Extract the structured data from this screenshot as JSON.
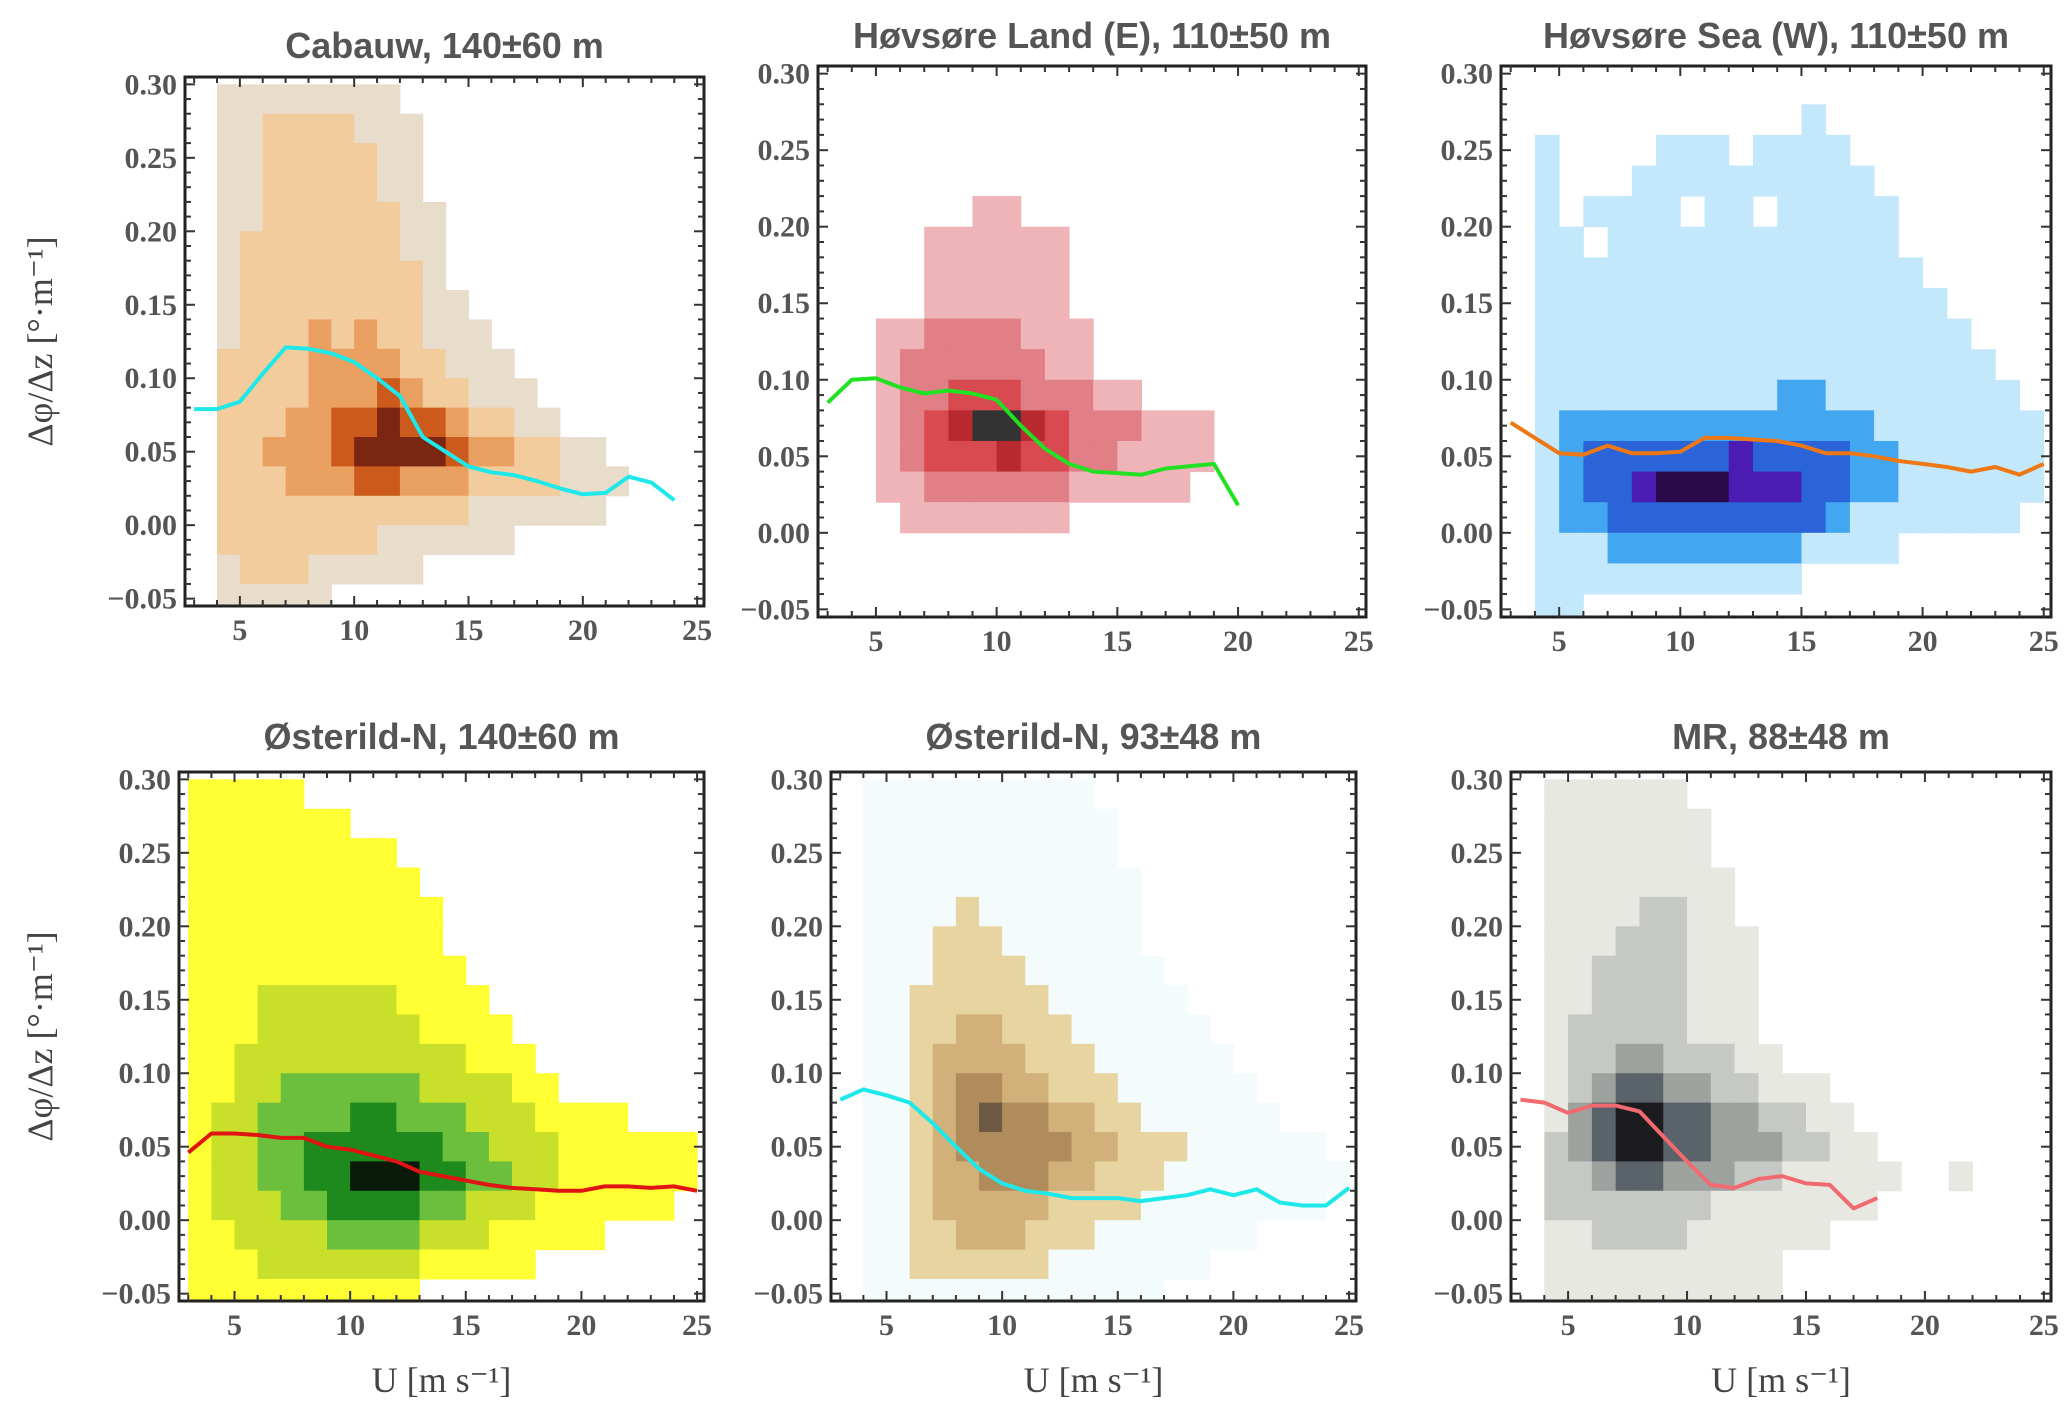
{
  "chart_data": [
    {
      "type": "heatmap",
      "title": "Cabauw, 140±60 m",
      "xlabel": "",
      "ylabel": "Δφ/Δz [°·m⁻¹]",
      "xlim": [
        2.6,
        25.3
      ],
      "ylim": [
        -0.055,
        0.305
      ],
      "xticks": [
        "5",
        "10",
        "15",
        "20",
        "25"
      ],
      "yticks": [
        "0.30",
        "0.25",
        "0.20",
        "0.15",
        "0.10",
        "0.05",
        "0.00",
        "−0.05"
      ],
      "heatmap": {
        "x_bin_start": 3,
        "x_bin_width": 1,
        "y_bin_top": 0.3,
        "y_bin_height": 0.02,
        "levels_rows_top_to_bottom": [
          "0111111110000000000000",
          "0112222111000000000000",
          "0112222211000000000000",
          "0112222211000000000000",
          "0112222221100000000000",
          "0122222221100000000000",
          "0122222222100000000000",
          "0122222222110000000000",
          "0122232322111000000000",
          "0222233332211100000000",
          "0222233343221110000000",
          "0222334454432211000000",
          "0223334555543322110000",
          "0222333443332222111000",
          "0222222222221111110000",
          "0222222211111100000000",
          "0122211111000000000000",
          "0111110000000000000000"
        ],
        "palette": [
          "#e8dccb",
          "#f2cc9c",
          "#eaa060",
          "#cc5a1c",
          "#7a2610"
        ]
      },
      "line": {
        "color": "#1ee8ea",
        "x": [
          3,
          4,
          5,
          6,
          7,
          8,
          9,
          10,
          11,
          12,
          13,
          14,
          15,
          16,
          17,
          18,
          19,
          20,
          21,
          22,
          23,
          24
        ],
        "y": [
          0.079,
          0.079,
          0.084,
          0.103,
          0.121,
          0.12,
          0.117,
          0.111,
          0.1,
          0.088,
          0.06,
          0.05,
          0.04,
          0.036,
          0.034,
          0.03,
          0.025,
          0.021,
          0.022,
          0.033,
          0.029,
          0.017
        ]
      }
    },
    {
      "type": "heatmap",
      "title": "Høvsøre Land (E), 110±50 m",
      "xlabel": "",
      "ylabel": "",
      "xlim": [
        2.6,
        25.3
      ],
      "ylim": [
        -0.055,
        0.305
      ],
      "xticks": [
        "5",
        "10",
        "15",
        "20",
        "25"
      ],
      "yticks": [
        "0.30",
        "0.25",
        "0.20",
        "0.15",
        "0.10",
        "0.05",
        "0.00",
        "−0.05"
      ],
      "heatmap": {
        "x_bin_start": 3,
        "x_bin_width": 1,
        "y_bin_top": 0.3,
        "y_bin_height": 0.02,
        "levels_rows_top_to_bottom": [
          "0000000000000000000000",
          "0000000000000000000000",
          "0000000000000000000000",
          "0000000000000000000000",
          "0000001100000000000000",
          "0000111111000000000000",
          "0000111111000000000000",
          "0000111111000000000000",
          "0011222211100000000000",
          "0012222221100000000000",
          "0012233322211000000000",
          "0012345543222111000000",
          "0012333433221111000000",
          "0011222222111110000000",
          "0001111111000000000000",
          "0000000000000000000000",
          "0000000000000000000000",
          "0000000000000000000000"
        ],
        "palette": [
          "#eeb4b8",
          "#e07f85",
          "#d84a50",
          "#b82a2f",
          "#333333"
        ]
      },
      "line": {
        "color": "#22e022",
        "x": [
          3,
          4,
          5,
          6,
          7,
          8,
          9,
          10,
          11,
          12,
          13,
          14,
          15,
          16,
          17,
          19,
          20
        ],
        "y": [
          0.085,
          0.1,
          0.101,
          0.095,
          0.091,
          0.093,
          0.091,
          0.087,
          0.07,
          0.055,
          0.045,
          0.04,
          0.039,
          0.038,
          0.042,
          0.045,
          0.018
        ]
      }
    },
    {
      "type": "heatmap",
      "title": "Høvsøre Sea (W), 110±50 m",
      "xlabel": "",
      "ylabel": "",
      "xlim": [
        2.6,
        25.3
      ],
      "ylim": [
        -0.055,
        0.305
      ],
      "xticks": [
        "5",
        "10",
        "15",
        "20",
        "25"
      ],
      "yticks": [
        "0.30",
        "0.25",
        "0.20",
        "0.15",
        "0.10",
        "0.05",
        "0.00",
        "−0.05"
      ],
      "heatmap": {
        "x_bin_start": 3,
        "x_bin_width": 1,
        "y_bin_top": 0.3,
        "y_bin_height": 0.02,
        "levels_rows_top_to_bottom": [
          "0000000000000000000000",
          "0000000000001000000000",
          "0100001110111100000000",
          "0100011111111110000000",
          "0101111011011111000000",
          "0110111111111111000000",
          "0111111111111111100000",
          "0111111111111111110000",
          "0111111111111111111000",
          "0111111111111111111100",
          "0111111111122111111110",
          "0122222222222221111111",
          "0123333334333322111111",
          "0123345554443322111111",
          "0122333333333211111110",
          "0111222222221111000000",
          "0111111111110000000000",
          "0110000000000000000000"
        ],
        "palette": [
          "#c4e8fb",
          "#42a6f0",
          "#2a64d8",
          "#4a1cb4",
          "#2a0a4a"
        ]
      },
      "line": {
        "color": "#f07814",
        "x": [
          3,
          4,
          5,
          6,
          7,
          8,
          9,
          10,
          11,
          12,
          13,
          14,
          15,
          16,
          17,
          18,
          19,
          20,
          21,
          22,
          23,
          24,
          25
        ],
        "y": [
          0.072,
          0.062,
          0.052,
          0.051,
          0.057,
          0.052,
          0.052,
          0.053,
          0.062,
          0.062,
          0.061,
          0.06,
          0.057,
          0.052,
          0.052,
          0.05,
          0.047,
          0.045,
          0.043,
          0.04,
          0.043,
          0.038,
          0.045
        ]
      }
    },
    {
      "type": "heatmap",
      "title": "Østerild-N, 140±60 m",
      "xlabel": "U [m s⁻¹]",
      "ylabel": "Δφ/Δz [°·m⁻¹]",
      "xlim": [
        2.6,
        25.3
      ],
      "ylim": [
        -0.055,
        0.305
      ],
      "xticks": [
        "5",
        "10",
        "15",
        "20",
        "25"
      ],
      "yticks": [
        "0.30",
        "0.25",
        "0.20",
        "0.15",
        "0.10",
        "0.05",
        "0.00",
        "−0.05"
      ],
      "heatmap": {
        "x_bin_start": 3,
        "x_bin_width": 1,
        "y_bin_top": 0.3,
        "y_bin_height": 0.02,
        "levels_rows_top_to_bottom": [
          "1111100000000000000000",
          "1111111000000000000000",
          "1111111110000000000000",
          "1111111111000000000000",
          "1111111111100000000000",
          "1111111111100000000000",
          "1111111111110000000000",
          "1112222221111000000000",
          "1112222222111100000000",
          "1122222222221110000000",
          "1122333333222211000000",
          "1223333443332221111000",
          "1223344444433222111111",
          "1223344555443322111111",
          "1222334444332221111110",
          "1122223333222111110000",
          "1112222222111110000000",
          "1111111111000000000000"
        ],
        "palette": [
          "#ffff33",
          "#c8e02a",
          "#6cbf3c",
          "#1e8a1e",
          "#0a1a0a"
        ]
      },
      "line": {
        "color": "#e01414",
        "x": [
          3,
          4,
          5,
          6,
          7,
          8,
          9,
          10,
          11,
          12,
          13,
          14,
          15,
          16,
          17,
          18,
          19,
          20,
          21,
          22,
          23,
          24,
          25
        ],
        "y": [
          0.046,
          0.059,
          0.059,
          0.058,
          0.056,
          0.056,
          0.05,
          0.048,
          0.044,
          0.04,
          0.033,
          0.03,
          0.027,
          0.024,
          0.022,
          0.021,
          0.02,
          0.02,
          0.023,
          0.023,
          0.022,
          0.023,
          0.02
        ]
      }
    },
    {
      "type": "heatmap",
      "title": "Østerild-N, 93±48 m",
      "xlabel": "U [m s⁻¹]",
      "ylabel": "",
      "xlim": [
        2.6,
        25.3
      ],
      "ylim": [
        -0.055,
        0.305
      ],
      "xticks": [
        "5",
        "10",
        "15",
        "20",
        "25"
      ],
      "yticks": [
        "0.30",
        "0.25",
        "0.20",
        "0.15",
        "0.10",
        "0.05",
        "0.00",
        "−0.05"
      ],
      "heatmap": {
        "x_bin_start": 3,
        "x_bin_width": 1,
        "y_bin_top": 0.3,
        "y_bin_height": 0.02,
        "levels_rows_top_to_bottom": [
          "0111111111100000000000",
          "0111111111110000000000",
          "0111111111110000000000",
          "0111111111111000000000",
          "0111121111111000000000",
          "0111222111111000000000",
          "0111222211111100000000",
          "0112222221111110000000",
          "0112233222111111000000",
          "0112333322211111100000",
          "0112344332221111110000",
          "0112345443322111111000",
          "0112344444332221111110",
          "0112334443322211111111",
          "0112333332222111111110",
          "0112233322211111110000",
          "0112222221111111000000",
          "0111111111111100000000"
        ],
        "palette": [
          "#f3fbfc",
          "#e8d4a0",
          "#d2b07a",
          "#b08c5c",
          "#6e5a44"
        ]
      },
      "line": {
        "color": "#1ee8ea",
        "x": [
          3,
          4,
          5,
          6,
          7,
          8,
          9,
          10,
          11,
          12,
          13,
          14,
          15,
          16,
          17,
          18,
          19,
          20,
          21,
          22,
          23,
          24,
          25
        ],
        "y": [
          0.082,
          0.089,
          0.085,
          0.08,
          0.066,
          0.05,
          0.035,
          0.025,
          0.02,
          0.018,
          0.015,
          0.015,
          0.015,
          0.013,
          0.015,
          0.017,
          0.021,
          0.017,
          0.021,
          0.012,
          0.01,
          0.01,
          0.022
        ]
      }
    },
    {
      "type": "heatmap",
      "title": "MR, 88±48 m",
      "xlabel": "U [m s⁻¹]",
      "ylabel": "",
      "xlim": [
        2.6,
        25.3
      ],
      "ylim": [
        -0.055,
        0.305
      ],
      "xticks": [
        "5",
        "10",
        "15",
        "20",
        "25"
      ],
      "yticks": [
        "0.30",
        "0.25",
        "0.20",
        "0.15",
        "0.10",
        "0.05",
        "0.00",
        "−0.05"
      ],
      "heatmap": {
        "x_bin_start": 3,
        "x_bin_width": 1,
        "y_bin_top": 0.3,
        "y_bin_height": 0.02,
        "levels_rows_top_to_bottom": [
          "0111111000000000000000",
          "0111111100000000000000",
          "0111111100000000000000",
          "0111111110000000000000",
          "0111122110000000000000",
          "0111222111000000000000",
          "0112222111000000000000",
          "0112222111000000000000",
          "0122222111000000000000",
          "0122332221100000000000",
          "0123443322111000000000",
          "0134554433221100000000",
          "0234554433322110000000",
          "0223443332211111001000",
          "0222222211111110000000",
          "0112222111111000000000",
          "0111111111100000000000",
          "0111111111100000000000"
        ],
        "palette": [
          "#e6e8e1",
          "#c6c8c3",
          "#9ea29e",
          "#5a626a",
          "#1c1c1e"
        ]
      },
      "line": {
        "color": "#f06a70",
        "x": [
          3,
          4,
          5,
          6,
          7,
          8,
          9,
          10,
          11,
          12,
          13,
          14,
          15,
          16,
          17,
          18
        ],
        "y": [
          0.082,
          0.08,
          0.073,
          0.078,
          0.078,
          0.074,
          0.057,
          0.04,
          0.024,
          0.022,
          0.028,
          0.03,
          0.025,
          0.024,
          0.008,
          0.015
        ]
      }
    }
  ]
}
